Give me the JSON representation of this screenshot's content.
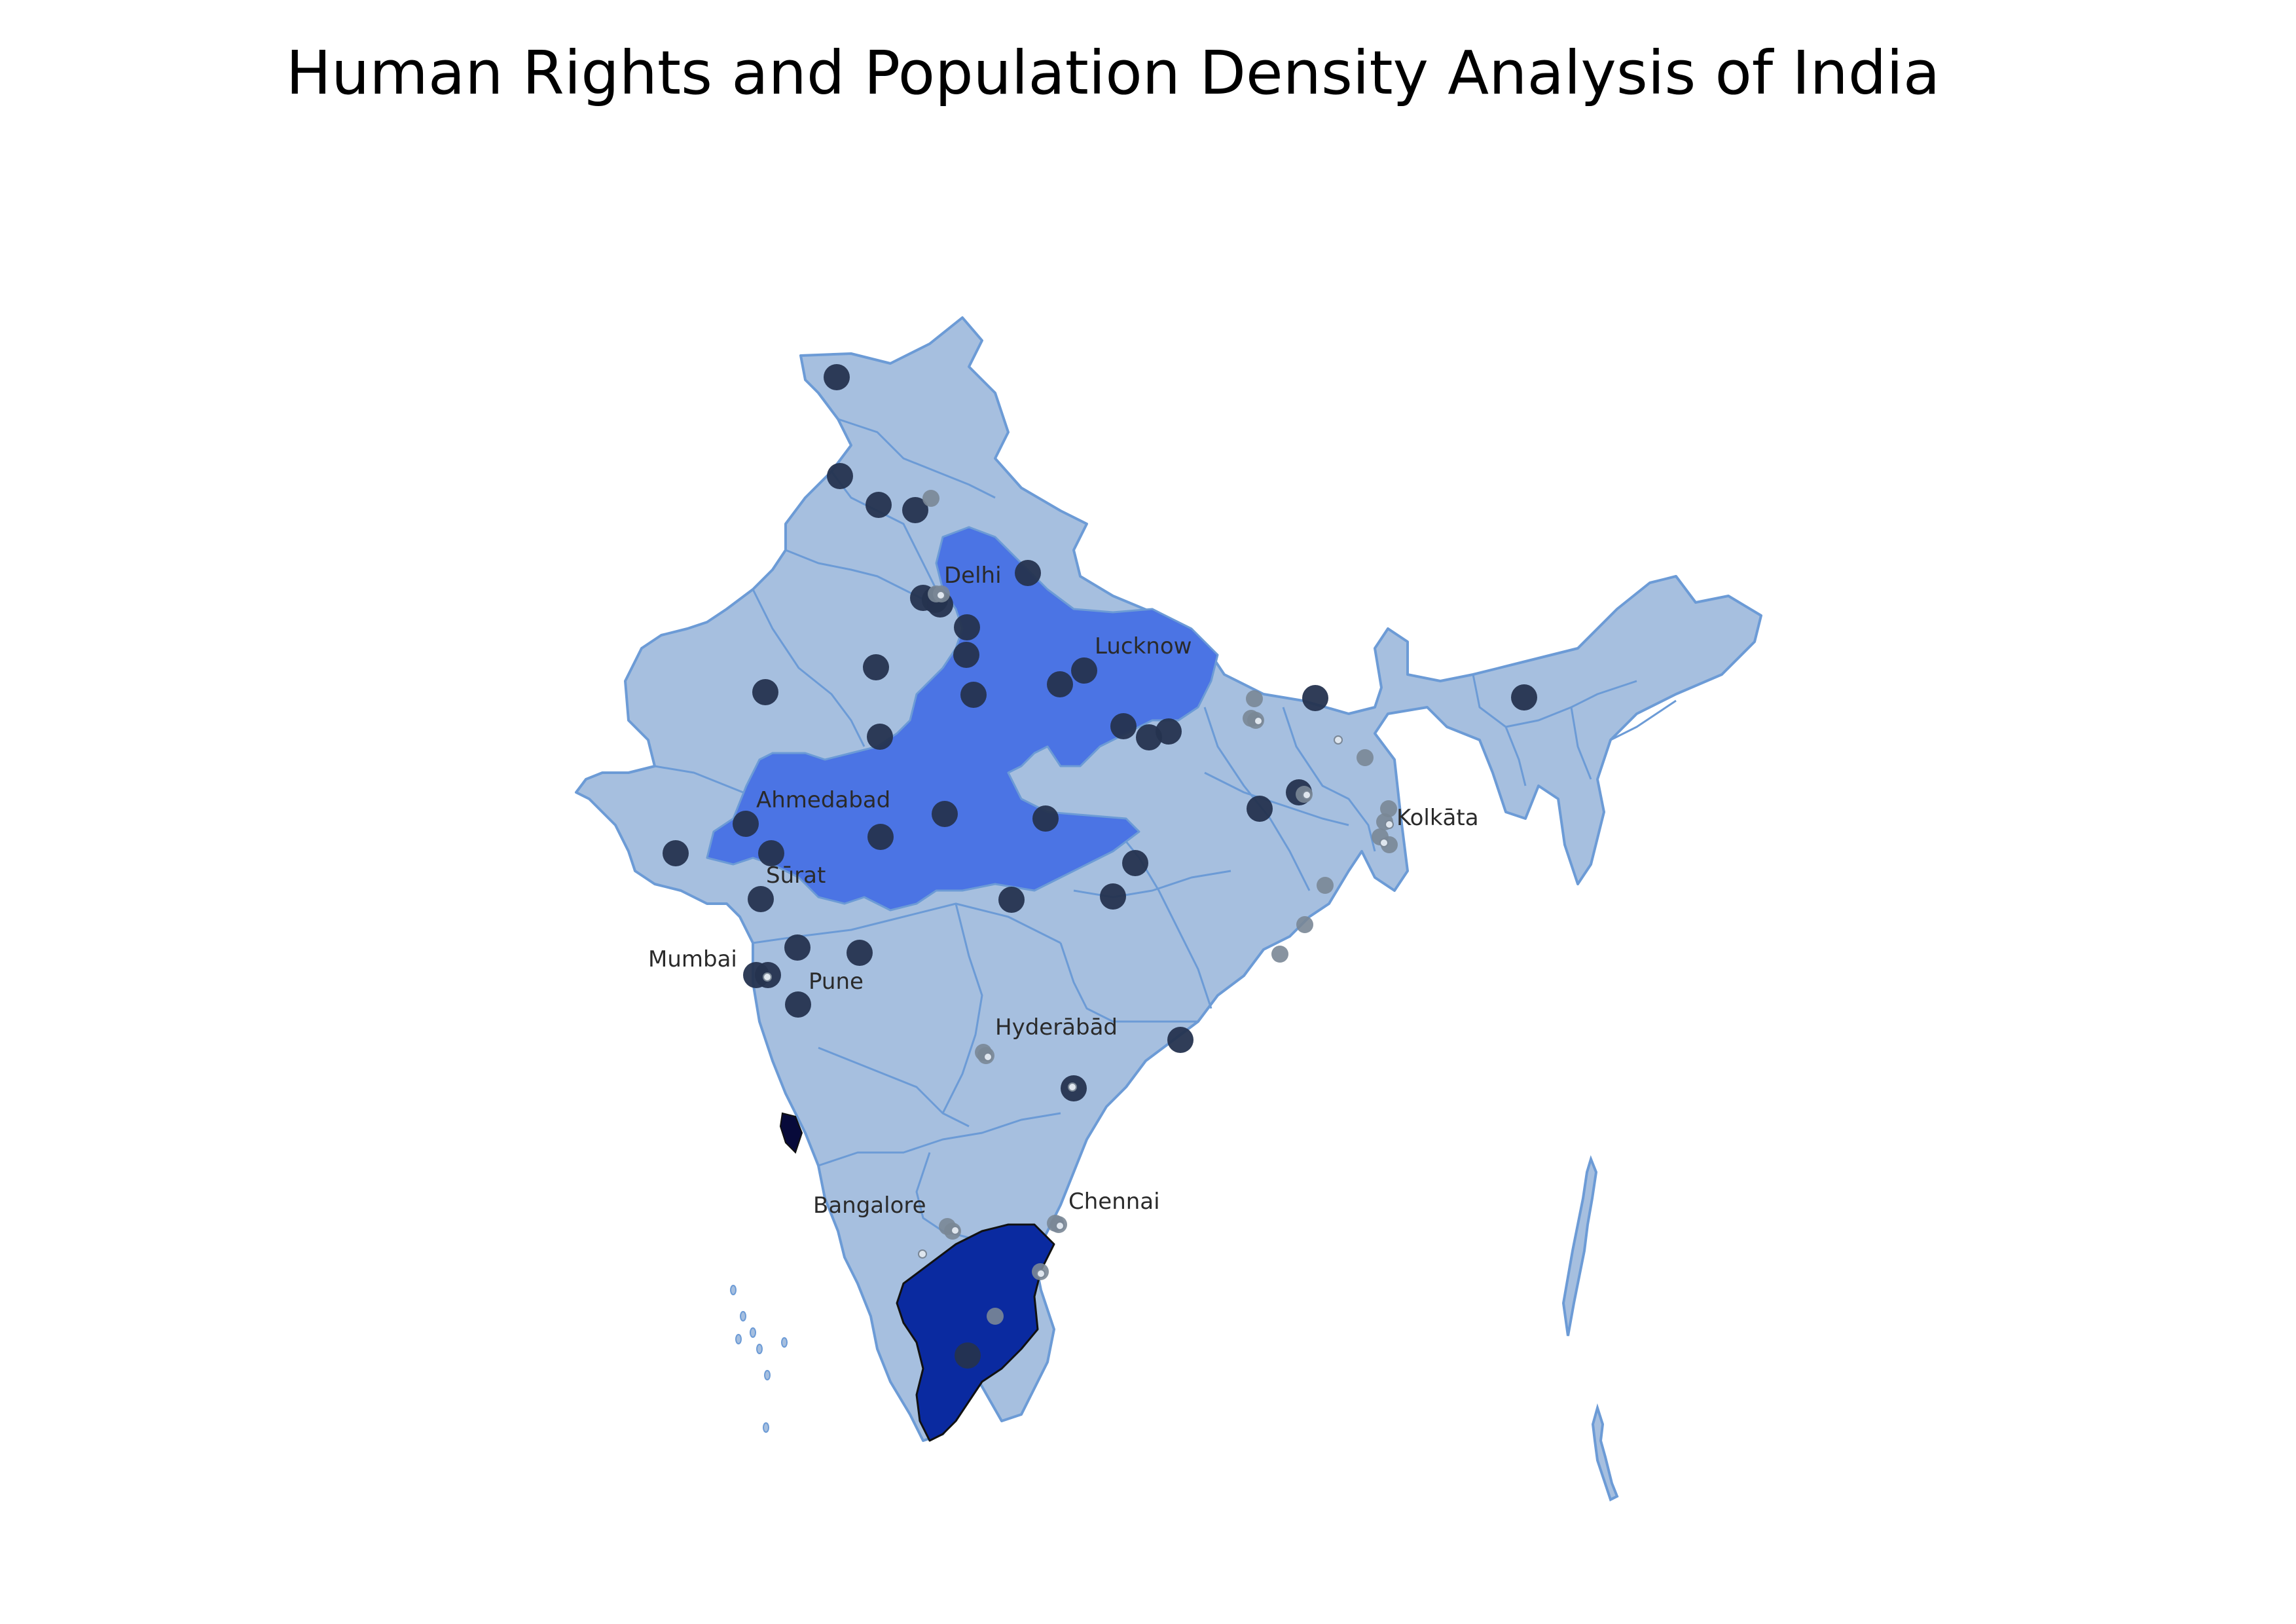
{
  "title": "Human Rights and Population Density Analysis of India",
  "colors": {
    "base_state": "#a6bfdf",
    "border": "#6c9bd6",
    "highlight_state": "#4b74e4",
    "dark_state": "#0a2aa0",
    "darkest_state": "#070a3a",
    "marker_large": "#25334f",
    "marker_small": "#7a8796",
    "marker_tiny": "#dfe6ee"
  },
  "cities": [
    {
      "name": "Delhi"
    },
    {
      "name": "Lucknow"
    },
    {
      "name": "Ahmedabad"
    },
    {
      "name": "Sūrat"
    },
    {
      "name": "Mumbai"
    },
    {
      "name": "Pune"
    },
    {
      "name": "Hyderābād"
    },
    {
      "name": "Kolkāta"
    },
    {
      "name": "Bangalore"
    },
    {
      "name": "Chennai"
    }
  ]
}
